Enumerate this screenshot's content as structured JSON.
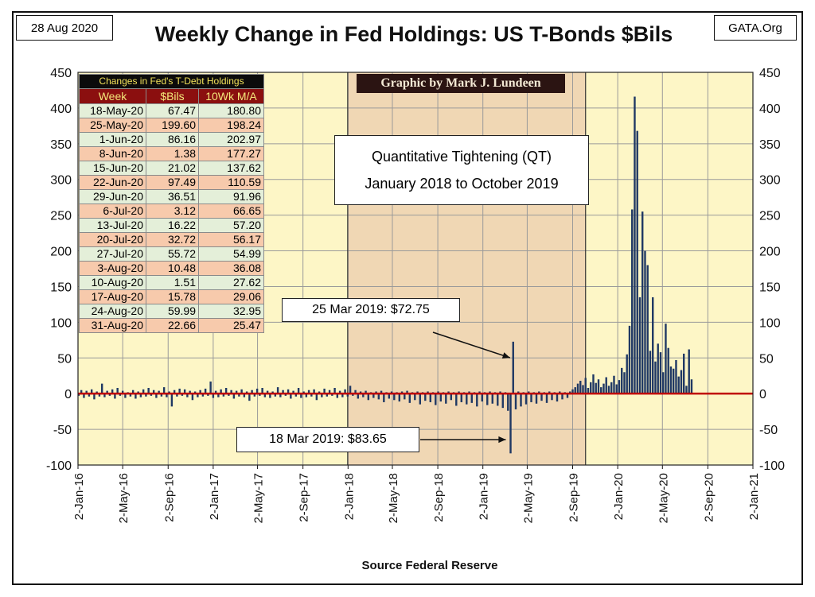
{
  "header": {
    "date": "28 Aug 2020",
    "site": "GATA.Org",
    "title": "Weekly Change in Fed Holdings: US T-Bonds $Bils"
  },
  "footer": {
    "source": "Source Federal Reserve"
  },
  "credit": "Graphic by Mark J. Lundeen",
  "qt_box": {
    "line1": "Quantitative Tightening (QT)",
    "line2": "January 2018 to October 2019"
  },
  "annotations": [
    {
      "id": "mar25",
      "text": "25 Mar 2019: $72.75",
      "date": "2019-03-25",
      "value": 72.75
    },
    {
      "id": "mar18",
      "text": "18 Mar 2019: $83.65",
      "date": "2019-03-18",
      "value": -83.65
    }
  ],
  "table": {
    "caption": "Changes in Fed's T-Debt Holdings",
    "headers": [
      "Week",
      "$Bils",
      "10Wk M/A"
    ],
    "rows": [
      [
        "18-May-20",
        "67.47",
        "180.80"
      ],
      [
        "25-May-20",
        "199.60",
        "198.24"
      ],
      [
        "1-Jun-20",
        "86.16",
        "202.97"
      ],
      [
        "8-Jun-20",
        "1.38",
        "177.27"
      ],
      [
        "15-Jun-20",
        "21.02",
        "137.62"
      ],
      [
        "22-Jun-20",
        "97.49",
        "110.59"
      ],
      [
        "29-Jun-20",
        "36.51",
        "91.96"
      ],
      [
        "6-Jul-20",
        "3.12",
        "66.65"
      ],
      [
        "13-Jul-20",
        "16.22",
        "57.20"
      ],
      [
        "20-Jul-20",
        "32.72",
        "56.17"
      ],
      [
        "27-Jul-20",
        "55.72",
        "54.99"
      ],
      [
        "3-Aug-20",
        "10.48",
        "36.08"
      ],
      [
        "10-Aug-20",
        "1.51",
        "27.62"
      ],
      [
        "17-Aug-20",
        "15.78",
        "29.06"
      ],
      [
        "24-Aug-20",
        "59.99",
        "32.95"
      ],
      [
        "31-Aug-20",
        "22.66",
        "25.47"
      ]
    ]
  },
  "colors": {
    "plot_bg": "#fdf6c6",
    "qt_bg": "#f0d7b4",
    "bar": "#1f3864",
    "zero_line": "#c00000",
    "grid": "#9a9a9a"
  },
  "chart_data": {
    "type": "bar",
    "xlim": [
      "2016-01-02",
      "2021-01-02"
    ],
    "ylim": [
      -100,
      450
    ],
    "y_ticks": [
      -100,
      -50,
      0,
      50,
      100,
      150,
      200,
      250,
      300,
      350,
      400,
      450
    ],
    "x_ticks": [
      "2-Jan-16",
      "2-May-16",
      "2-Sep-16",
      "2-Jan-17",
      "2-May-17",
      "2-Sep-17",
      "2-Jan-18",
      "2-May-18",
      "2-Sep-18",
      "2-Jan-19",
      "2-May-19",
      "2-Sep-19",
      "2-Jan-20",
      "2-May-20",
      "2-Sep-20",
      "2-Jan-21"
    ],
    "x_tick_dates": [
      "2016-01-02",
      "2016-05-02",
      "2016-09-02",
      "2017-01-02",
      "2017-05-02",
      "2017-09-02",
      "2018-01-02",
      "2018-05-02",
      "2018-09-02",
      "2019-01-02",
      "2019-05-02",
      "2019-09-02",
      "2020-01-02",
      "2020-05-02",
      "2020-09-02",
      "2021-01-02"
    ],
    "grid": true,
    "qt_period": [
      "2018-01-01",
      "2019-10-07"
    ],
    "series": [
      {
        "start": "2016-01-04",
        "step_days": 7,
        "values": [
          -3,
          5,
          -6,
          4,
          -4,
          6,
          -8,
          3,
          -4,
          14,
          -5,
          4,
          -3,
          6,
          -7,
          8,
          -3,
          4,
          -6,
          2,
          -4,
          5,
          -7,
          3,
          -5,
          6,
          -4,
          8,
          -3,
          5,
          -6,
          4,
          -4,
          9,
          -5,
          3,
          -18,
          5,
          -4,
          7,
          -3,
          6,
          -5,
          4,
          -9,
          3,
          -5,
          5,
          -4,
          7,
          -3,
          17,
          -6,
          4,
          -5,
          6,
          -4,
          8,
          -3,
          5,
          -7,
          4,
          -4,
          6,
          -5,
          3,
          -10,
          5,
          -4,
          7,
          -3,
          8,
          -5,
          4,
          -6,
          3,
          -4,
          9,
          -5,
          5,
          -3,
          6,
          -7,
          4,
          -4,
          8,
          -6,
          3,
          -5,
          5,
          -4,
          6,
          -9,
          3,
          -5,
          7,
          -4,
          5,
          -3,
          8,
          -6,
          4,
          -5,
          6,
          -4,
          11,
          -3,
          5,
          -7,
          3,
          -5,
          4,
          -9,
          2,
          -6,
          3,
          -8,
          4,
          -12,
          2,
          -7,
          3,
          -9,
          2,
          -11,
          3,
          -8,
          4,
          -13,
          2,
          -9,
          3,
          -15,
          2,
          -10,
          3,
          -12,
          2,
          -16,
          3,
          -11,
          2,
          -14,
          3,
          -9,
          2,
          -17,
          3,
          -12,
          2,
          -15,
          3,
          -13,
          2,
          -18,
          3,
          -11,
          2,
          -16,
          3,
          -14,
          2,
          -17,
          3,
          -20,
          2,
          -24,
          -83.65,
          72.75,
          -22,
          3,
          -18,
          2,
          -15,
          3,
          -12,
          2,
          -14,
          3,
          -10,
          2,
          -13,
          3,
          -9,
          2,
          -11,
          3,
          -8,
          2,
          -6,
          3,
          6,
          9,
          14,
          18,
          12,
          22,
          8,
          16,
          27,
          15,
          20,
          9,
          14,
          23,
          11,
          16,
          25,
          13,
          19,
          36,
          30,
          55,
          95,
          258,
          416,
          368,
          135,
          255,
          200,
          180,
          60,
          135,
          45,
          70,
          58,
          30,
          98,
          64,
          38,
          35,
          47,
          24,
          33,
          56,
          11,
          62,
          20
        ]
      }
    ]
  }
}
